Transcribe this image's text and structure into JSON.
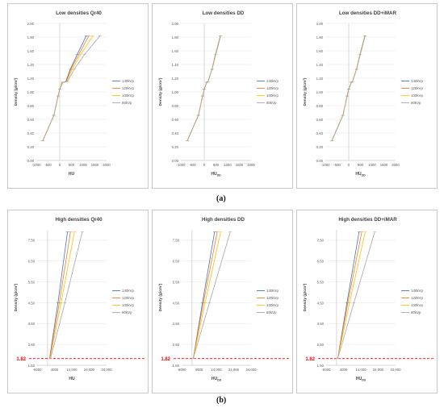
{
  "captions": {
    "a": "(a)",
    "b": "(b)"
  },
  "colors": {
    "140kVp": "#4472c4",
    "120kVp": "#ed7d31",
    "100kVp": "#ffc000",
    "80kVp": "#a5a5a5",
    "ref_line": "#ff0000"
  },
  "chart_data": [
    {
      "type": "line",
      "title": "Low densities Qr40",
      "xlabel": "HU",
      "xlabel_sub": "",
      "ylabel": "Density (g/cm³)",
      "xlim": [
        -1000,
        2000
      ],
      "xticks": [
        -1000,
        -500,
        0,
        500,
        1000,
        1500,
        2000
      ],
      "ylim": [
        0,
        2
      ],
      "yticks": [
        "0.00",
        "0.20",
        "0.40",
        "0.60",
        "0.80",
        "1.00",
        "1.20",
        "1.40",
        "1.60",
        "1.80",
        "2.00"
      ],
      "series": [
        {
          "name": "140kVp",
          "points": [
            [
              -720,
              0.29
            ],
            [
              -250,
              0.66
            ],
            [
              -70,
              0.94
            ],
            [
              0,
              1.04
            ],
            [
              100,
              1.14
            ],
            [
              260,
              1.15
            ],
            [
              450,
              1.33
            ],
            [
              750,
              1.55
            ],
            [
              1130,
              1.82
            ]
          ]
        },
        {
          "name": "120kVp",
          "points": [
            [
              -720,
              0.29
            ],
            [
              -250,
              0.66
            ],
            [
              -70,
              0.94
            ],
            [
              0,
              1.04
            ],
            [
              110,
              1.14
            ],
            [
              280,
              1.15
            ],
            [
              480,
              1.33
            ],
            [
              820,
              1.55
            ],
            [
              1240,
              1.82
            ]
          ]
        },
        {
          "name": "100kVp",
          "points": [
            [
              -720,
              0.29
            ],
            [
              -250,
              0.66
            ],
            [
              -70,
              0.94
            ],
            [
              0,
              1.04
            ],
            [
              120,
              1.14
            ],
            [
              300,
              1.15
            ],
            [
              530,
              1.33
            ],
            [
              900,
              1.55
            ],
            [
              1420,
              1.82
            ]
          ]
        },
        {
          "name": "80kVp",
          "points": [
            [
              -720,
              0.29
            ],
            [
              -250,
              0.66
            ],
            [
              -70,
              0.94
            ],
            [
              0,
              1.04
            ],
            [
              140,
              1.14
            ],
            [
              330,
              1.15
            ],
            [
              620,
              1.33
            ],
            [
              1070,
              1.55
            ],
            [
              1720,
              1.82
            ]
          ]
        }
      ]
    },
    {
      "type": "line",
      "title": "Low densities DD",
      "xlabel": "HU",
      "xlabel_sub": "DD",
      "ylabel": "Density (g/cm³)",
      "xlim": [
        -1000,
        2000
      ],
      "xticks": [
        -1000,
        -500,
        0,
        500,
        1000,
        1500,
        2000
      ],
      "ylim": [
        0,
        2
      ],
      "yticks": [
        "0.00",
        "0.20",
        "0.40",
        "0.60",
        "0.80",
        "1.00",
        "1.20",
        "1.40",
        "1.60",
        "1.80",
        "2.00"
      ],
      "series": [
        {
          "name": "140kVp",
          "points": [
            [
              -720,
              0.29
            ],
            [
              -250,
              0.66
            ],
            [
              -70,
              0.94
            ],
            [
              0,
              1.04
            ],
            [
              110,
              1.14
            ],
            [
              160,
              1.15
            ],
            [
              330,
              1.33
            ],
            [
              480,
              1.55
            ],
            [
              690,
              1.82
            ]
          ]
        },
        {
          "name": "120kVp",
          "points": [
            [
              -720,
              0.29
            ],
            [
              -250,
              0.66
            ],
            [
              -70,
              0.94
            ],
            [
              0,
              1.04
            ],
            [
              110,
              1.14
            ],
            [
              160,
              1.15
            ],
            [
              330,
              1.33
            ],
            [
              485,
              1.55
            ],
            [
              695,
              1.82
            ]
          ]
        },
        {
          "name": "100kVp",
          "points": [
            [
              -720,
              0.29
            ],
            [
              -250,
              0.66
            ],
            [
              -70,
              0.94
            ],
            [
              0,
              1.04
            ],
            [
              110,
              1.14
            ],
            [
              160,
              1.15
            ],
            [
              330,
              1.33
            ],
            [
              490,
              1.55
            ],
            [
              700,
              1.82
            ]
          ]
        },
        {
          "name": "80kVp",
          "points": [
            [
              -720,
              0.29
            ],
            [
              -250,
              0.66
            ],
            [
              -70,
              0.94
            ],
            [
              0,
              1.04
            ],
            [
              110,
              1.14
            ],
            [
              160,
              1.15
            ],
            [
              335,
              1.33
            ],
            [
              495,
              1.55
            ],
            [
              705,
              1.82
            ]
          ]
        }
      ]
    },
    {
      "type": "line",
      "title": "Low densities DD+iMAR",
      "xlabel": "HU",
      "xlabel_sub": "DD",
      "ylabel": "Density (g/cm³)",
      "xlim": [
        -1000,
        2000
      ],
      "xticks": [
        -1000,
        -500,
        0,
        500,
        1000,
        1500,
        2000
      ],
      "ylim": [
        0,
        2
      ],
      "yticks": [
        "0.00",
        "0.20",
        "0.40",
        "0.60",
        "0.80",
        "1.00",
        "1.20",
        "1.40",
        "1.60",
        "1.80",
        "2.00"
      ],
      "series": [
        {
          "name": "140kVp",
          "points": [
            [
              -720,
              0.29
            ],
            [
              -250,
              0.66
            ],
            [
              -70,
              0.94
            ],
            [
              0,
              1.04
            ],
            [
              110,
              1.14
            ],
            [
              160,
              1.15
            ],
            [
              330,
              1.33
            ],
            [
              480,
              1.55
            ],
            [
              690,
              1.82
            ]
          ]
        },
        {
          "name": "120kVp",
          "points": [
            [
              -720,
              0.29
            ],
            [
              -250,
              0.66
            ],
            [
              -70,
              0.94
            ],
            [
              0,
              1.04
            ],
            [
              110,
              1.14
            ],
            [
              160,
              1.15
            ],
            [
              330,
              1.33
            ],
            [
              485,
              1.55
            ],
            [
              695,
              1.82
            ]
          ]
        },
        {
          "name": "100kVp",
          "points": [
            [
              -720,
              0.29
            ],
            [
              -250,
              0.66
            ],
            [
              -70,
              0.94
            ],
            [
              0,
              1.04
            ],
            [
              110,
              1.14
            ],
            [
              160,
              1.15
            ],
            [
              330,
              1.33
            ],
            [
              490,
              1.55
            ],
            [
              700,
              1.82
            ]
          ]
        },
        {
          "name": "80kVp",
          "points": [
            [
              -720,
              0.29
            ],
            [
              -250,
              0.66
            ],
            [
              -70,
              0.94
            ],
            [
              0,
              1.04
            ],
            [
              110,
              1.14
            ],
            [
              160,
              1.15
            ],
            [
              335,
              1.33
            ],
            [
              495,
              1.55
            ],
            [
              705,
              1.82
            ]
          ]
        }
      ]
    },
    {
      "type": "line",
      "title": "High densities Qr40",
      "xlabel": "HU",
      "xlabel_sub": "",
      "ylabel": "Density (g/cm³)",
      "ref_label": "1.82",
      "ref_y": 1.82,
      "xlim": [
        -6000,
        34000
      ],
      "xticks": [
        "-6000",
        "4000",
        "14,000",
        "24,000",
        "34,000"
      ],
      "xtick_values": [
        -6000,
        4000,
        14000,
        24000,
        34000
      ],
      "ylim": [
        1.5,
        8
      ],
      "yticks": [
        "1.50",
        "2.50",
        "3.50",
        "4.50",
        "5.50",
        "6.50",
        "7.50"
      ],
      "series": [
        {
          "name": "140kVp",
          "points": [
            [
              1150,
              1.82
            ],
            [
              6000,
              4.5
            ],
            [
              11500,
              7.9
            ]
          ]
        },
        {
          "name": "120kVp",
          "points": [
            [
              1240,
              1.82
            ],
            [
              6800,
              4.5
            ],
            [
              13200,
              7.9
            ]
          ]
        },
        {
          "name": "100kVp",
          "points": [
            [
              1420,
              1.82
            ],
            [
              7800,
              4.5
            ],
            [
              15500,
              7.9
            ]
          ]
        },
        {
          "name": "80kVp",
          "points": [
            [
              1720,
              1.82
            ],
            [
              10000,
              4.5
            ],
            [
              20000,
              7.9
            ]
          ]
        }
      ]
    },
    {
      "type": "line",
      "title": "High densities DD",
      "xlabel": "HU",
      "xlabel_sub": "DD",
      "ylabel": "Density (g/cm³)",
      "ref_label": "1.82",
      "ref_y": 1.82,
      "xlim": [
        -6000,
        34000
      ],
      "xticks": [
        "-6000",
        "4000",
        "14,000",
        "24,000",
        "34,000"
      ],
      "xtick_values": [
        -6000,
        4000,
        14000,
        24000,
        34000
      ],
      "ylim": [
        1.5,
        8
      ],
      "yticks": [
        "1.50",
        "2.50",
        "3.50",
        "4.50",
        "5.50",
        "6.50",
        "7.50"
      ],
      "series": [
        {
          "name": "140kVp",
          "points": [
            [
              690,
              1.82
            ],
            [
              6000,
              4.5
            ],
            [
              13000,
              7.9
            ]
          ]
        },
        {
          "name": "120kVp",
          "points": [
            [
              695,
              1.82
            ],
            [
              6500,
              4.5
            ],
            [
              14500,
              7.9
            ]
          ]
        },
        {
          "name": "100kVp",
          "points": [
            [
              700,
              1.82
            ],
            [
              7500,
              4.5
            ],
            [
              16500,
              7.9
            ]
          ]
        },
        {
          "name": "80kVp",
          "points": [
            [
              705,
              1.82
            ],
            [
              10000,
              4.5
            ],
            [
              22000,
              7.9
            ]
          ]
        }
      ]
    },
    {
      "type": "line",
      "title": "High densities DD+iMAR",
      "xlabel": "HU",
      "xlabel_sub": "DD",
      "ylabel": "Density (g/cm³)",
      "ref_label": "1.82",
      "ref_y": 1.82,
      "xlim": [
        -6000,
        34000
      ],
      "xticks": [
        "-6000",
        "4000",
        "14,000",
        "24,000",
        "34,000"
      ],
      "xtick_values": [
        -6000,
        4000,
        14000,
        24000,
        34000
      ],
      "ylim": [
        1.5,
        8
      ],
      "yticks": [
        "1.50",
        "2.50",
        "3.50",
        "4.50",
        "5.50",
        "6.50",
        "7.50"
      ],
      "series": [
        {
          "name": "140kVp",
          "points": [
            [
              690,
              1.82
            ],
            [
              6000,
              4.5
            ],
            [
              13000,
              7.9
            ]
          ]
        },
        {
          "name": "120kVp",
          "points": [
            [
              695,
              1.82
            ],
            [
              6500,
              4.5
            ],
            [
              14500,
              7.9
            ]
          ]
        },
        {
          "name": "100kVp",
          "points": [
            [
              700,
              1.82
            ],
            [
              7500,
              4.5
            ],
            [
              16500,
              7.9
            ]
          ]
        },
        {
          "name": "80kVp",
          "points": [
            [
              705,
              1.82
            ],
            [
              10000,
              4.5
            ],
            [
              22000,
              7.9
            ]
          ]
        }
      ]
    }
  ]
}
